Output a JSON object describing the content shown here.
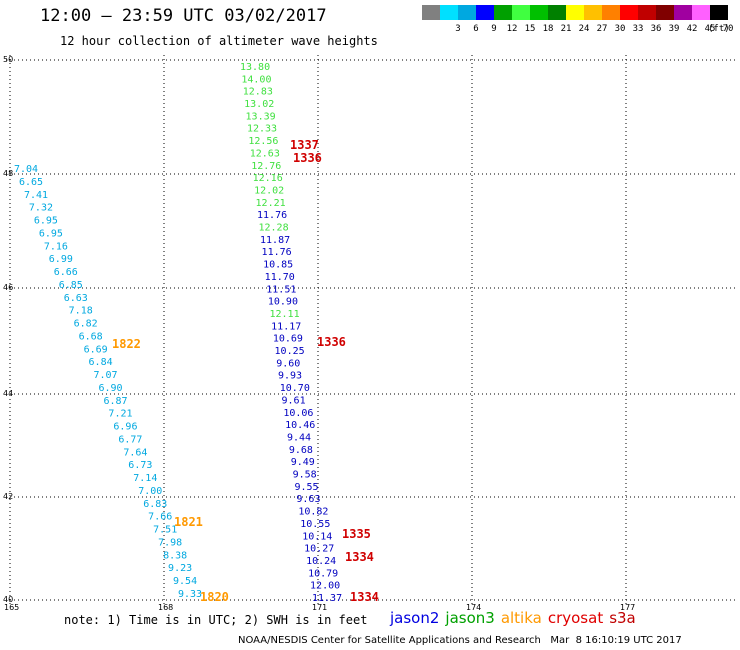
{
  "header": {
    "title": "12:00 — 23:59 UTC 03/02/2017",
    "subtitle": "12 hour collection of altimeter wave heights"
  },
  "legend": {
    "unit": "(ft)",
    "items": [
      {
        "label": "",
        "color": "#808080"
      },
      {
        "label": "3",
        "color": "#00e0ff"
      },
      {
        "label": "6",
        "color": "#00a8e0"
      },
      {
        "label": "9",
        "color": "#0000ff"
      },
      {
        "label": "12",
        "color": "#00a000"
      },
      {
        "label": "15",
        "color": "#40ff40"
      },
      {
        "label": "18",
        "color": "#00c000"
      },
      {
        "label": "21",
        "color": "#008000"
      },
      {
        "label": "24",
        "color": "#ffff00"
      },
      {
        "label": "27",
        "color": "#ffc000"
      },
      {
        "label": "30",
        "color": "#ff8000"
      },
      {
        "label": "33",
        "color": "#ff0000"
      },
      {
        "label": "36",
        "color": "#c00000"
      },
      {
        "label": "39",
        "color": "#800000"
      },
      {
        "label": "42",
        "color": "#a000a0"
      },
      {
        "label": "45",
        "color": "#ff60ff"
      },
      {
        "label": "70",
        "color": "#000000"
      }
    ]
  },
  "map": {
    "lon_ticks": [
      "165",
      "168",
      "171",
      "174",
      "177"
    ],
    "lat_ticks": [
      "40",
      "42",
      "44",
      "46",
      "48",
      "50"
    ],
    "colors": {
      "light_blue": "#00a8e0",
      "dark_blue": "#0000c0",
      "green": "#40e040",
      "orange": "#ff9900",
      "red": "#d00000"
    },
    "series": [
      {
        "name": "cyan-track",
        "color": "light_blue",
        "values": [
          "7.04",
          "6.65",
          "7.41",
          "7.32",
          "6.95",
          "6.95",
          "7.16",
          "6.99",
          "6.66",
          "6.85",
          "6.63",
          "7.18",
          "6.82",
          "6.68",
          "6.69",
          "6.84",
          "7.07",
          "6.90",
          "6.87",
          "7.21",
          "6.96",
          "6.77",
          "7.64",
          "6.73",
          "7.14",
          "7.00",
          "6.83",
          "7.66",
          "7.51",
          "7.98",
          "8.38",
          "9.23",
          "9.54",
          "9.33"
        ]
      },
      {
        "name": "jason-track",
        "values": [
          {
            "v": "13.80",
            "c": "green"
          },
          {
            "v": "14.00",
            "c": "green"
          },
          {
            "v": "12.83",
            "c": "green"
          },
          {
            "v": "13.02",
            "c": "green"
          },
          {
            "v": "13.39",
            "c": "green"
          },
          {
            "v": "12.33",
            "c": "green"
          },
          {
            "v": "12.56",
            "c": "green"
          },
          {
            "v": "12.63",
            "c": "green"
          },
          {
            "v": "12.76",
            "c": "green"
          },
          {
            "v": "12.16",
            "c": "green"
          },
          {
            "v": "12.02",
            "c": "green"
          },
          {
            "v": "12.21",
            "c": "green"
          },
          {
            "v": "11.76",
            "c": "dark_blue"
          },
          {
            "v": "12.28",
            "c": "green"
          },
          {
            "v": "11.87",
            "c": "dark_blue"
          },
          {
            "v": "11.76",
            "c": "dark_blue"
          },
          {
            "v": "10.85",
            "c": "dark_blue"
          },
          {
            "v": "11.70",
            "c": "dark_blue"
          },
          {
            "v": "11.51",
            "c": "dark_blue"
          },
          {
            "v": "10.90",
            "c": "dark_blue"
          },
          {
            "v": "12.11",
            "c": "green"
          },
          {
            "v": "11.17",
            "c": "dark_blue"
          },
          {
            "v": "10.69",
            "c": "dark_blue"
          },
          {
            "v": "10.25",
            "c": "dark_blue"
          },
          {
            "v": "9.60",
            "c": "dark_blue"
          },
          {
            "v": "9.93",
            "c": "dark_blue"
          },
          {
            "v": "10.70",
            "c": "dark_blue"
          },
          {
            "v": "9.61",
            "c": "dark_blue"
          },
          {
            "v": "10.06",
            "c": "dark_blue"
          },
          {
            "v": "10.46",
            "c": "dark_blue"
          },
          {
            "v": "9.44",
            "c": "dark_blue"
          },
          {
            "v": "9.68",
            "c": "dark_blue"
          },
          {
            "v": "9.49",
            "c": "dark_blue"
          },
          {
            "v": "9.58",
            "c": "dark_blue"
          },
          {
            "v": "9.55",
            "c": "dark_blue"
          },
          {
            "v": "9.63",
            "c": "dark_blue"
          },
          {
            "v": "10.82",
            "c": "dark_blue"
          },
          {
            "v": "10.55",
            "c": "dark_blue"
          },
          {
            "v": "10.14",
            "c": "dark_blue"
          },
          {
            "v": "10.27",
            "c": "dark_blue"
          },
          {
            "v": "10.24",
            "c": "dark_blue"
          },
          {
            "v": "10.79",
            "c": "dark_blue"
          },
          {
            "v": "12.00",
            "c": "dark_blue"
          },
          {
            "v": "11.37",
            "c": "dark_blue"
          }
        ]
      }
    ],
    "pass_labels": [
      {
        "text": "1337",
        "color": "red"
      },
      {
        "text": "1336",
        "color": "red"
      },
      {
        "text": "1336",
        "color": "red"
      },
      {
        "text": "1822",
        "color": "orange"
      },
      {
        "text": "1821",
        "color": "orange"
      },
      {
        "text": "1820",
        "color": "orange"
      },
      {
        "text": "1335",
        "color": "red"
      },
      {
        "text": "1334",
        "color": "red"
      },
      {
        "text": "1334",
        "color": "red"
      }
    ]
  },
  "footer": {
    "note": "note: 1) Time is in UTC; 2) SWH is in feet",
    "satellites": [
      {
        "name": "jason2",
        "color": "#0000e0"
      },
      {
        "name": "jason3",
        "color": "#00a000"
      },
      {
        "name": "altika",
        "color": "#ff9900"
      },
      {
        "name": "cryosat",
        "color": "#e00000"
      },
      {
        "name": "s3a",
        "color": "#c00000"
      }
    ],
    "credit": "NOAA/NESDIS Center for Satellite Applications and Research   Mar  8 16:10:19 UTC 2017"
  }
}
